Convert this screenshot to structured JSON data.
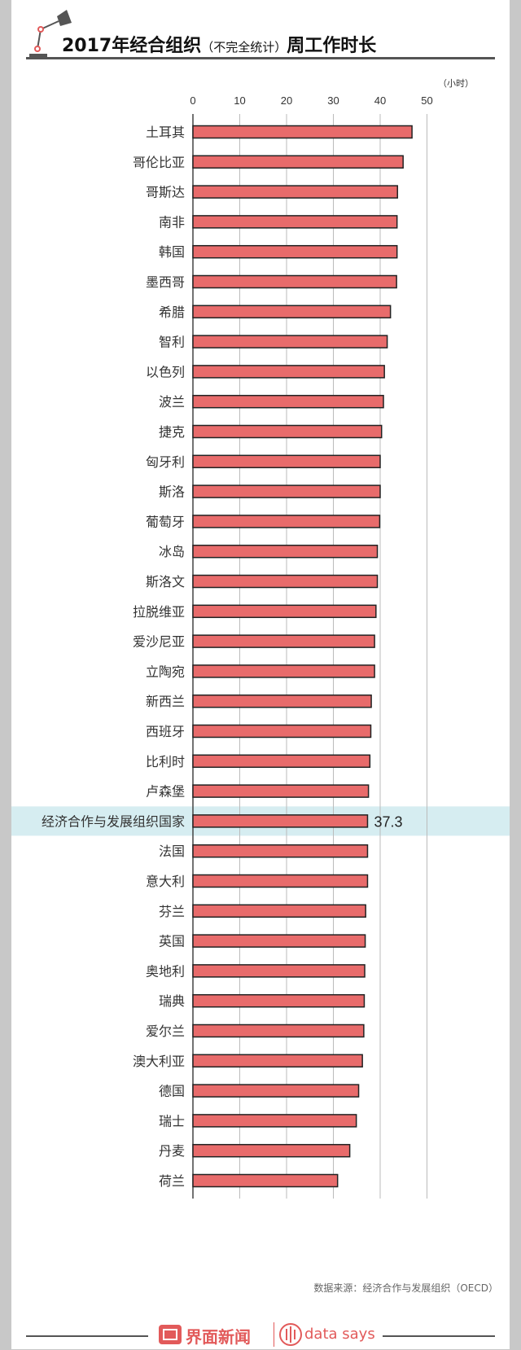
{
  "title": {
    "main_start": "2017年经合组织",
    "sub": "（不完全统计）",
    "main_end": "周工作时长"
  },
  "unit": "（小时）",
  "source": "数据来源：经济合作与发展组织（OECD）",
  "footer": {
    "brand_cn": "界面新闻",
    "brand_en": "data says"
  },
  "colors": {
    "bar": "#e86b6b",
    "bar_stroke": "#222222",
    "highlight_band": "#d6edf1",
    "grid": "#bbbbbb"
  },
  "chart_data": {
    "type": "bar",
    "orientation": "horizontal",
    "categories": [
      "土耳其",
      "哥伦比亚",
      "哥斯达",
      "南非",
      "韩国",
      "墨西哥",
      "希腊",
      "智利",
      "以色列",
      "波兰",
      "捷克",
      "匈牙利",
      "斯洛",
      "葡萄牙",
      "冰岛",
      "斯洛文",
      "拉脱维亚",
      "爱沙尼亚",
      "立陶宛",
      "新西兰",
      "西班牙",
      "比利时",
      "卢森堡",
      "经济合作与发展组织国家",
      "法国",
      "意大利",
      "芬兰",
      "英国",
      "奥地利",
      "瑞典",
      "爱尔兰",
      "澳大利亚",
      "德国",
      "瑞士",
      "丹麦",
      "荷兰"
    ],
    "values": [
      46.8,
      44.9,
      43.7,
      43.6,
      43.6,
      43.5,
      42.2,
      41.5,
      40.9,
      40.7,
      40.3,
      40.0,
      40.0,
      39.9,
      39.4,
      39.4,
      39.1,
      38.8,
      38.8,
      38.1,
      38.0,
      37.8,
      37.5,
      37.3,
      37.3,
      37.3,
      36.9,
      36.8,
      36.7,
      36.6,
      36.5,
      36.2,
      35.4,
      34.9,
      33.5,
      30.9
    ],
    "highlight_index": 23,
    "highlight_label": "37.3",
    "xlim": [
      0,
      50
    ],
    "xticks": [
      0,
      10,
      20,
      30,
      40,
      50
    ],
    "grid": true
  }
}
